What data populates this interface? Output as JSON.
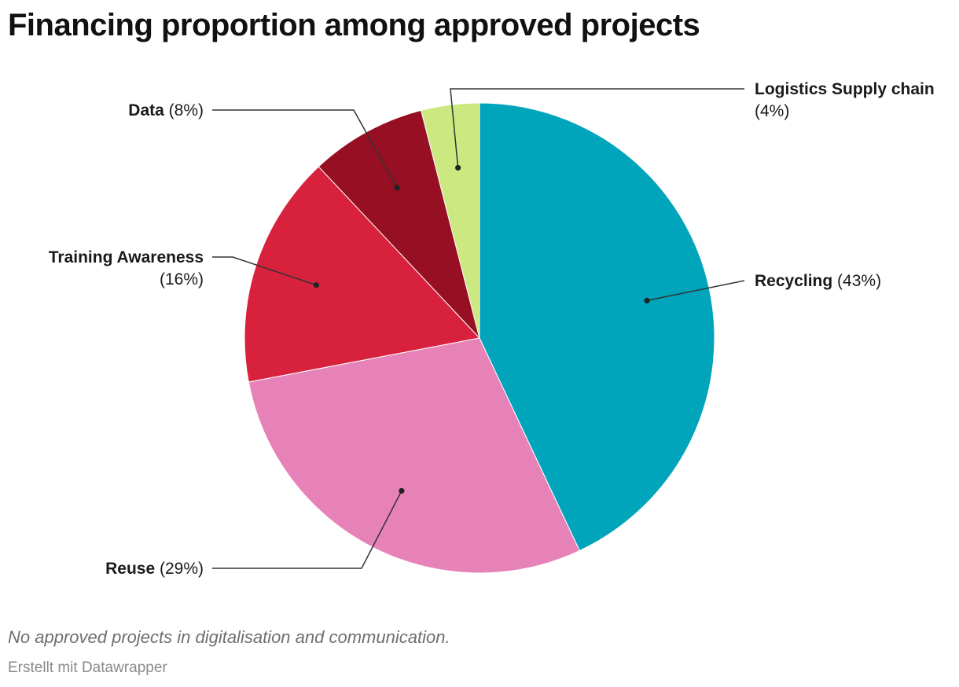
{
  "chart_data": {
    "type": "pie",
    "title": "Financing proportion among approved projects",
    "slices": [
      {
        "label": "Recycling",
        "value": 43,
        "value_label": "(43%)",
        "color": "#00a4bb"
      },
      {
        "label": "Reuse",
        "value": 29,
        "value_label": "(29%)",
        "color": "#e782b8"
      },
      {
        "label": "Training Awareness",
        "value": 16,
        "value_label": "(16%)",
        "color": "#d7213d"
      },
      {
        "label": "Data",
        "value": 8,
        "value_label": "(8%)",
        "color": "#960f22"
      },
      {
        "label": "Logistics Supply chain",
        "value": 4,
        "value_label": "(4%)",
        "color": "#cce880"
      }
    ],
    "note": "No approved projects in digitalisation and communication.",
    "credit": "Erstellt mit Datawrapper"
  }
}
